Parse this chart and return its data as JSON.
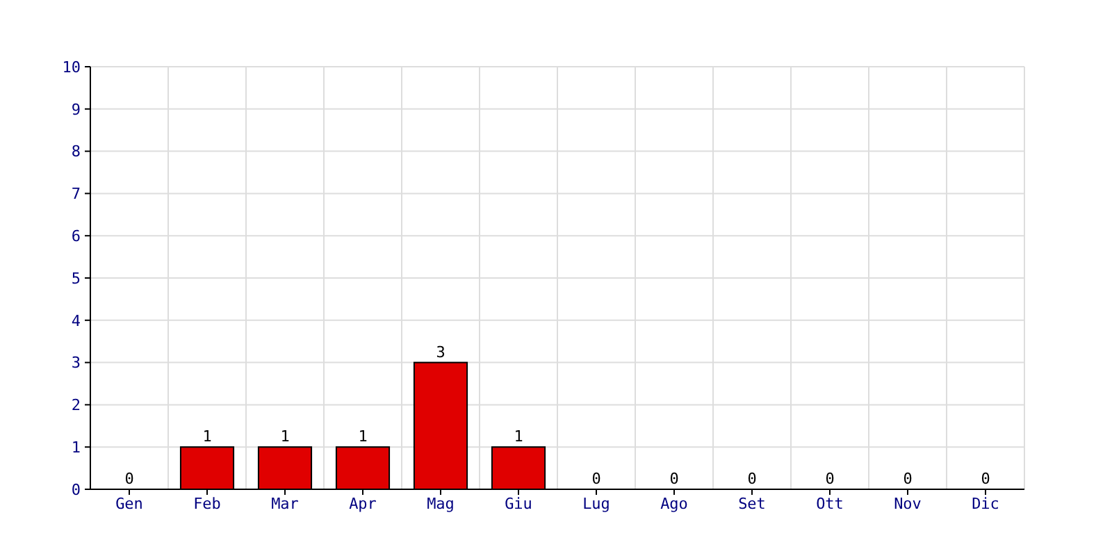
{
  "chart_data": {
    "type": "bar",
    "categories": [
      "Gen",
      "Feb",
      "Mar",
      "Apr",
      "Mag",
      "Giu",
      "Lug",
      "Ago",
      "Set",
      "Ott",
      "Nov",
      "Dic"
    ],
    "values": [
      0,
      1,
      1,
      1,
      3,
      1,
      0,
      0,
      0,
      0,
      0,
      0
    ],
    "color": "#e00000",
    "ylim": [
      0,
      10
    ],
    "yticks": [
      0,
      1,
      2,
      3,
      4,
      5,
      6,
      7,
      8,
      9,
      10
    ],
    "grid": true,
    "data_labels": true
  }
}
